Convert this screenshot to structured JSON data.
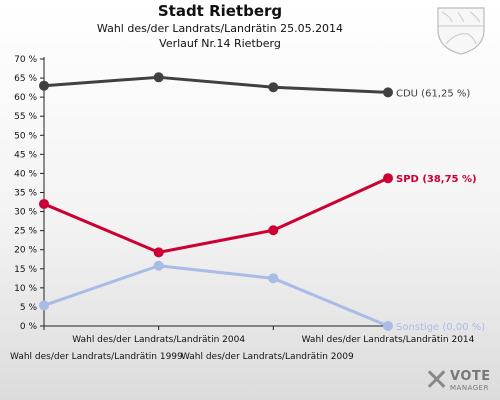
{
  "header": {
    "title": "Stadt Rietberg",
    "subtitle1": "Wahl des/der Landrats/Landrätin 25.05.2014",
    "subtitle2": "Verlauf Nr.14 Rietberg"
  },
  "logo": {
    "line1": "VOTE",
    "line2": "MANAGER",
    "icon": "x-icon"
  },
  "crest": {
    "icon": "nrw-crest-icon"
  },
  "chart_data": {
    "type": "line",
    "categories": [
      "Wahl des/der Landrats/Landrätin 1999",
      "Wahl des/der Landrats/Landrätin 2004",
      "Wahl des/der Landrats/Landrätin 2009",
      "Wahl des/der Landrats/Landrätin 2014"
    ],
    "ylim": [
      0,
      70
    ],
    "yticks": [
      0,
      5,
      10,
      15,
      20,
      25,
      30,
      35,
      40,
      45,
      50,
      55,
      60,
      65,
      70
    ],
    "ytick_suffix": " %",
    "grid": false,
    "series": [
      {
        "name": "CDU",
        "color": "#404040",
        "values": [
          63.0,
          65.2,
          62.6,
          61.25
        ],
        "end_label": "CDU (61,25 %)"
      },
      {
        "name": "SPD",
        "color": "#cc0033",
        "values": [
          32.0,
          19.3,
          25.1,
          38.75
        ],
        "end_label": "SPD (38,75 %)"
      },
      {
        "name": "Sonstige",
        "color": "#a9bce6",
        "values": [
          5.4,
          15.8,
          12.5,
          0.0
        ],
        "end_label": "Sonstige (0,00 %)"
      }
    ]
  }
}
